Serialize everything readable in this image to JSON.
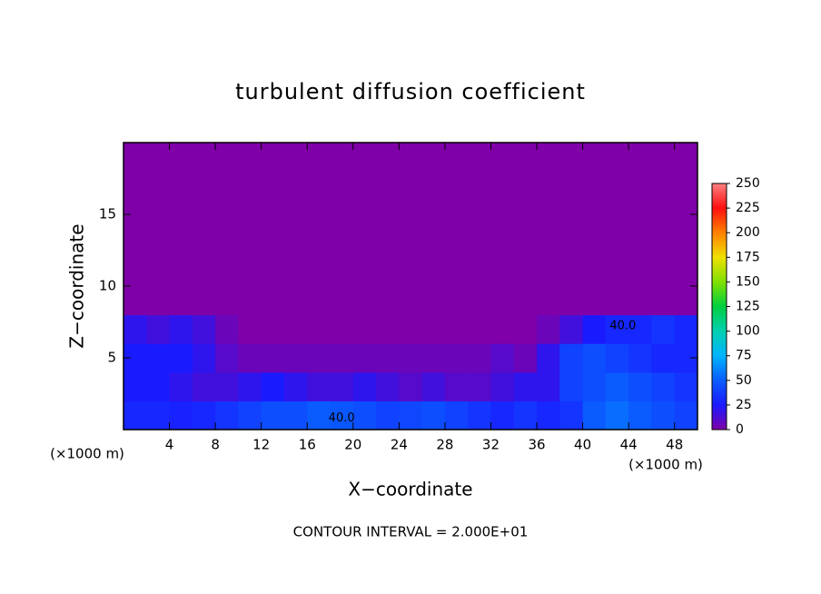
{
  "chart_data": {
    "type": "heatmap",
    "title": "turbulent diffusion coefficient",
    "x_label": "X−coordinate",
    "y_label": "Z−coordinate",
    "x_unit": "(×1000 m)",
    "footnote": "CONTOUR INTERVAL = 2.000E+01",
    "xlim": [
      0,
      50
    ],
    "ylim": [
      0,
      20
    ],
    "xticks": [
      4,
      8,
      12,
      16,
      20,
      24,
      28,
      32,
      36,
      40,
      44,
      48
    ],
    "yticks": [
      5,
      10,
      15
    ],
    "x_edges": [
      0,
      2,
      4,
      6,
      8,
      10,
      12,
      14,
      16,
      18,
      20,
      22,
      24,
      26,
      28,
      30,
      32,
      34,
      36,
      38,
      40,
      42,
      44,
      46,
      48,
      50
    ],
    "z_edges": [
      0,
      2,
      4,
      6,
      8,
      20
    ],
    "z": [
      [
        30,
        30,
        28,
        30,
        35,
        40,
        45,
        45,
        50,
        48,
        45,
        40,
        42,
        45,
        40,
        35,
        30,
        35,
        30,
        35,
        50,
        55,
        50,
        45,
        40
      ],
      [
        25,
        25,
        20,
        15,
        15,
        20,
        25,
        20,
        15,
        15,
        20,
        15,
        10,
        15,
        10,
        10,
        15,
        20,
        20,
        40,
        45,
        50,
        45,
        40,
        35
      ],
      [
        25,
        25,
        25,
        20,
        10,
        5,
        5,
        5,
        5,
        5,
        5,
        5,
        5,
        5,
        5,
        5,
        10,
        5,
        20,
        40,
        45,
        40,
        35,
        30,
        30
      ],
      [
        20,
        15,
        20,
        15,
        5,
        0,
        0,
        0,
        0,
        0,
        0,
        0,
        0,
        0,
        0,
        0,
        0,
        0,
        5,
        15,
        25,
        30,
        30,
        35,
        30
      ],
      [
        0,
        0,
        0,
        0,
        0,
        0,
        0,
        0,
        0,
        0,
        0,
        0,
        0,
        0,
        0,
        0,
        0,
        0,
        0,
        0,
        0,
        0,
        0,
        0,
        0
      ]
    ],
    "clim": [
      0,
      250
    ],
    "cticks": [
      0,
      25,
      50,
      75,
      100,
      125,
      150,
      175,
      200,
      225,
      250
    ],
    "colorscale": [
      "#7f00a8",
      "#1a1aff",
      "#0a5cff",
      "#00b4ff",
      "#00d0b0",
      "#00d040",
      "#80e000",
      "#f0e000",
      "#ff8000",
      "#ff1010",
      "#ff8080"
    ],
    "contour_labels": [
      {
        "text": "40.0",
        "x": 19,
        "y": 0.8
      },
      {
        "text": "40.0",
        "x": 43.5,
        "y": 7.2
      }
    ]
  }
}
